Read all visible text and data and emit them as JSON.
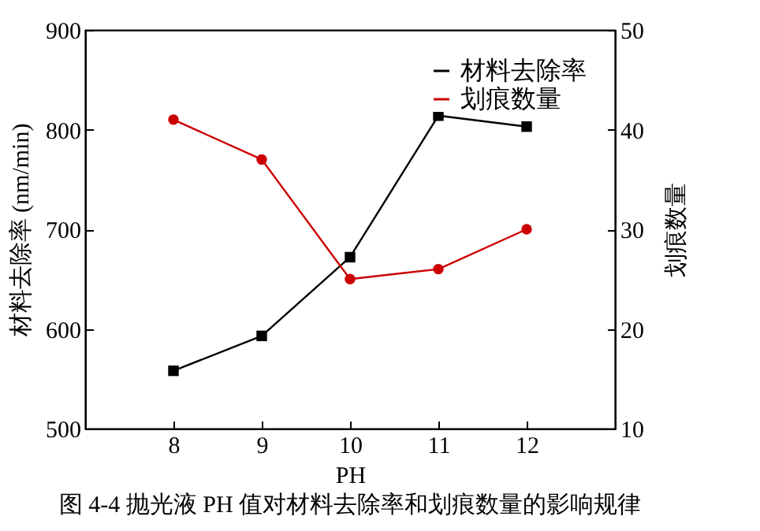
{
  "chart_data": {
    "type": "line",
    "xlabel": "PH",
    "ylabel": "材料去除率 (nm/min)",
    "y2label": "划痕数量",
    "x": [
      8,
      9,
      10,
      11,
      12
    ],
    "xlim": [
      7,
      13
    ],
    "xticks": [
      8,
      9,
      10,
      11,
      12
    ],
    "ylim": [
      500,
      900
    ],
    "yticks": [
      500,
      600,
      700,
      800,
      900
    ],
    "y2lim": [
      10,
      50
    ],
    "y2ticks": [
      10,
      20,
      30,
      40,
      50
    ],
    "series": [
      {
        "name": "材料去除率",
        "color": "#000000",
        "marker": "square",
        "values": [
          558,
          593,
          672,
          814,
          803
        ]
      },
      {
        "name": "划痕数量",
        "color": "#cc0000",
        "marker": "circle",
        "axis": "y2",
        "values": [
          41,
          37,
          25,
          26,
          30
        ]
      }
    ],
    "legend": "top right",
    "grid": false,
    "annotations": [
      "图 4-4  抛光液 PH 值对材料去除率和划痕数量的影响规律"
    ]
  }
}
